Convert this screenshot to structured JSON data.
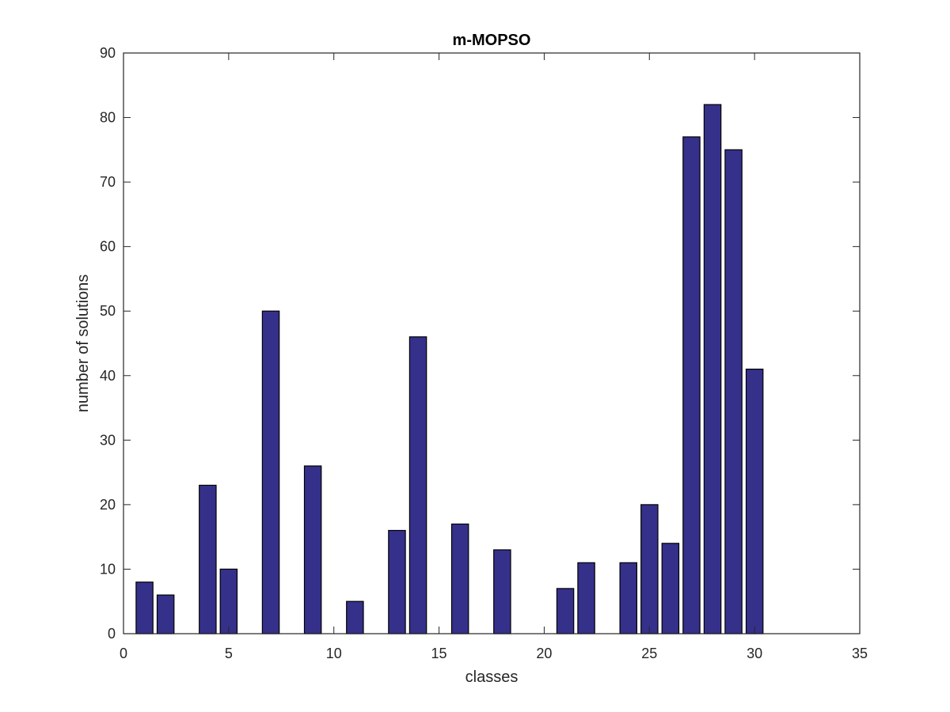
{
  "chart_data": {
    "type": "bar",
    "title": "m-MOPSO",
    "xlabel": "classes",
    "ylabel": "number of solutions",
    "xlim": [
      0,
      35
    ],
    "ylim": [
      0,
      90
    ],
    "xticks": [
      0,
      5,
      10,
      15,
      20,
      25,
      30,
      35
    ],
    "yticks": [
      0,
      10,
      20,
      30,
      40,
      50,
      60,
      70,
      80,
      90
    ],
    "grid": false,
    "x": [
      1,
      2,
      3,
      4,
      5,
      6,
      7,
      8,
      9,
      10,
      11,
      12,
      13,
      14,
      15,
      16,
      17,
      18,
      19,
      20,
      21,
      22,
      23,
      24,
      25,
      26,
      27,
      28,
      29,
      30
    ],
    "values": [
      8,
      6,
      0,
      23,
      10,
      0,
      50,
      0,
      26,
      0,
      5,
      0,
      16,
      46,
      0,
      17,
      0,
      13,
      0,
      0,
      7,
      11,
      0,
      11,
      20,
      14,
      77,
      82,
      75,
      41
    ],
    "bar_color": "#35308A",
    "edge_color": "#000000"
  }
}
